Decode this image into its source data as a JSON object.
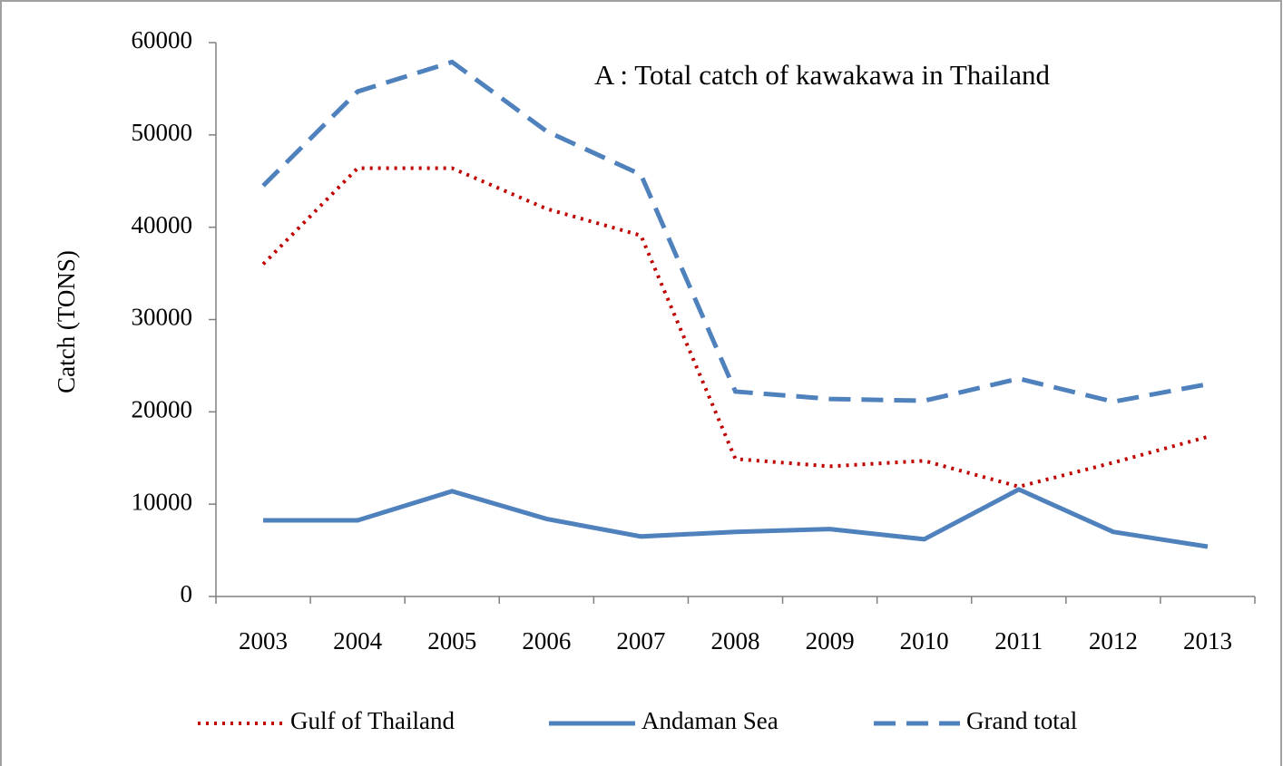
{
  "chart_data": {
    "type": "line",
    "title": "A : Total catch of kawakawa in Thailand",
    "y_label": "Catch (TONS)",
    "categories": [
      "2003",
      "2004",
      "2005",
      "2006",
      "2007",
      "2008",
      "2009",
      "2010",
      "2011",
      "2012",
      "2013"
    ],
    "series": [
      {
        "name": "Gulf of Thailand",
        "color": "#c00000",
        "dash": "dotted",
        "values": [
          36000,
          46400,
          46400,
          42000,
          39100,
          14900,
          14100,
          14700,
          11900,
          14500,
          17300
        ]
      },
      {
        "name": "Andaman Sea",
        "color": "#4f81bd",
        "dash": "solid",
        "values": [
          8250,
          8250,
          11400,
          8400,
          6500,
          7000,
          7300,
          6200,
          11600,
          7000,
          5400
        ]
      },
      {
        "name": "Grand total",
        "color": "#4f81bd",
        "dash": "dashed",
        "values": [
          44500,
          54700,
          57900,
          50400,
          45700,
          22200,
          21400,
          21200,
          23600,
          21100,
          23000
        ]
      }
    ],
    "ylim": [
      0,
      60000
    ],
    "yticks": [
      0,
      10000,
      20000,
      30000,
      40000,
      50000,
      60000
    ],
    "grid": false,
    "legend": "bottom"
  }
}
